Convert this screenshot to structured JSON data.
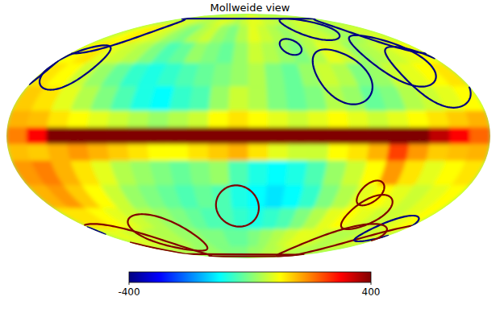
{
  "chart_data": {
    "type": "mollweide",
    "title": "Mollweide view",
    "lon_edges": [
      180,
      165,
      150,
      135,
      120,
      105,
      90,
      75,
      60,
      45,
      30,
      15,
      0,
      -15,
      -30,
      -45,
      -60,
      -75,
      -90,
      -105,
      -120,
      -135,
      -150,
      -165,
      -180
    ],
    "lat_edges": [
      90,
      75,
      60,
      45,
      30,
      15,
      5,
      -5,
      -15,
      -30,
      -45,
      -60,
      -75,
      -90
    ],
    "values": [
      [
        60,
        60,
        80,
        80,
        60,
        40,
        40,
        60,
        80,
        60,
        40,
        60,
        80,
        80,
        60,
        60,
        40,
        40,
        60,
        80,
        60,
        40,
        60,
        60
      ],
      [
        80,
        100,
        120,
        80,
        60,
        20,
        0,
        40,
        60,
        20,
        0,
        40,
        80,
        60,
        40,
        20,
        40,
        60,
        60,
        40,
        20,
        40,
        60,
        80
      ],
      [
        100,
        120,
        80,
        60,
        40,
        0,
        -40,
        -20,
        20,
        0,
        -20,
        20,
        60,
        40,
        20,
        0,
        40,
        80,
        60,
        20,
        40,
        60,
        80,
        100
      ],
      [
        120,
        100,
        60,
        20,
        -20,
        -60,
        -80,
        -60,
        -40,
        -20,
        0,
        20,
        40,
        0,
        -20,
        20,
        60,
        40,
        0,
        20,
        60,
        80,
        100,
        120
      ],
      [
        140,
        120,
        80,
        40,
        0,
        -40,
        -80,
        -100,
        -60,
        -40,
        20,
        60,
        40,
        0,
        -20,
        0,
        40,
        20,
        -20,
        0,
        40,
        60,
        80,
        100
      ],
      [
        160,
        150,
        120,
        100,
        80,
        60,
        40,
        20,
        40,
        60,
        100,
        120,
        100,
        80,
        60,
        80,
        100,
        80,
        60,
        80,
        100,
        120,
        140,
        160
      ],
      [
        200,
        300,
        420,
        450,
        450,
        450,
        450,
        450,
        450,
        450,
        450,
        450,
        450,
        450,
        450,
        450,
        450,
        450,
        450,
        450,
        420,
        350,
        300,
        220
      ],
      [
        150,
        140,
        160,
        180,
        160,
        140,
        120,
        100,
        100,
        120,
        140,
        160,
        120,
        80,
        60,
        60,
        100,
        120,
        160,
        250,
        180,
        140,
        150,
        160
      ],
      [
        180,
        200,
        160,
        120,
        80,
        40,
        20,
        0,
        -20,
        0,
        20,
        -40,
        -80,
        -100,
        -80,
        -40,
        20,
        60,
        100,
        180,
        120,
        80,
        100,
        120
      ],
      [
        160,
        180,
        140,
        100,
        60,
        20,
        0,
        -20,
        -40,
        -20,
        -40,
        -80,
        -100,
        -120,
        -100,
        -60,
        0,
        40,
        80,
        100,
        80,
        60,
        80,
        100
      ],
      [
        120,
        120,
        100,
        80,
        60,
        40,
        20,
        0,
        -20,
        -40,
        -40,
        -60,
        -80,
        -60,
        -40,
        0,
        40,
        80,
        100,
        80,
        60,
        60,
        80,
        100
      ],
      [
        80,
        80,
        60,
        60,
        40,
        40,
        20,
        20,
        0,
        0,
        -20,
        -20,
        0,
        20,
        40,
        60,
        80,
        80,
        60,
        40,
        40,
        60,
        60,
        80
      ],
      [
        60,
        60,
        40,
        40,
        40,
        20,
        20,
        20,
        0,
        0,
        0,
        0,
        20,
        20,
        40,
        40,
        60,
        60,
        40,
        40,
        40,
        40,
        60,
        60
      ]
    ],
    "colorbar_range": [
      -400,
      400
    ],
    "colorbar_ticks": [
      -400,
      400
    ],
    "rings": [
      {
        "lon": -157,
        "lat": 37,
        "radius": 20,
        "value": -450
      },
      {
        "lon": -141,
        "lat": 48,
        "radius": 18,
        "value": -450
      },
      {
        "lon": -81,
        "lat": 37,
        "radius": 18,
        "value": -450
      },
      {
        "lon": -46,
        "lat": 57,
        "radius": 6,
        "value": -450
      },
      {
        "lon": -97,
        "lat": 72,
        "radius": 10,
        "value": -450
      },
      {
        "lon": 159,
        "lat": 43,
        "radius": 15,
        "value": -450
      },
      {
        "lon": 177,
        "lat": 67,
        "radius": 15,
        "value": -450
      },
      {
        "lon": 10,
        "lat": -44,
        "radius": 14,
        "value": 450
      },
      {
        "lon": 103,
        "lat": -64,
        "radius": 15,
        "value": 450
      },
      {
        "lon": 166,
        "lat": -71,
        "radius": 15,
        "value": 450
      },
      {
        "lon": -114,
        "lat": -48,
        "radius": 12,
        "value": 450
      },
      {
        "lon": -161,
        "lat": -60,
        "radius": 10,
        "value": -450
      },
      {
        "lon": -134,
        "lat": -71,
        "radius": 15,
        "value": 450
      },
      {
        "lon": -103,
        "lat": -35,
        "radius": 8,
        "value": 450
      }
    ]
  }
}
